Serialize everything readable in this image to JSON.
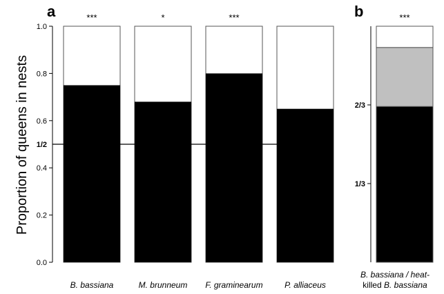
{
  "chart_data": [
    {
      "panel": "a",
      "type": "bar",
      "stacked_proportion": true,
      "ylabel": "Proportion of queens in nests",
      "ylim": [
        0,
        1
      ],
      "yticks": [
        "0.0",
        "0.2",
        "0.4",
        "0.6",
        "0.8",
        "1.0"
      ],
      "reference_line": {
        "value": 0.5,
        "label": "1/2"
      },
      "categories": [
        "B. bassiana",
        "M. brunneum",
        "F. graminearum",
        "P. alliaceus"
      ],
      "values": [
        0.75,
        0.68,
        0.8,
        0.65
      ],
      "significance": [
        "***",
        "*",
        "***",
        ""
      ],
      "colors": {
        "filled": "#000000",
        "remainder": "#ffffff",
        "edge": "#555555"
      }
    },
    {
      "panel": "b",
      "type": "bar",
      "stacked_proportion": true,
      "ylim": [
        0,
        1
      ],
      "yticks": [
        "1/3",
        "2/3"
      ],
      "ytick_values": [
        0.3333,
        0.6667
      ],
      "category_line1": "B. bassiana / heat-",
      "category_line2_pre": "killed ",
      "category_line2_italic": "B. bassiana",
      "segments": [
        {
          "value": 0.66,
          "color": "#000000"
        },
        {
          "value": 0.25,
          "color": "#c0c0c0"
        },
        {
          "value": 0.09,
          "color": "#ffffff"
        }
      ],
      "significance": "***"
    }
  ]
}
